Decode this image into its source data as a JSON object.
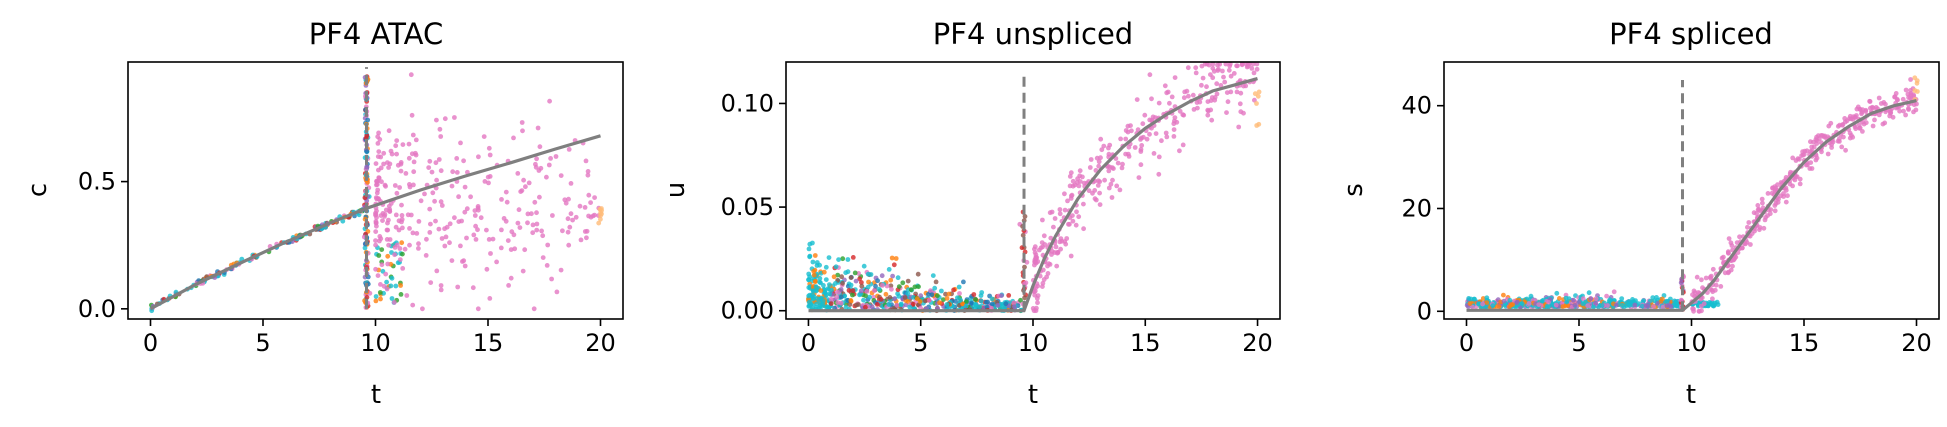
{
  "chart_data": [
    {
      "type": "scatter",
      "title": "PF4 ATAC",
      "xlabel": "t",
      "ylabel": "c",
      "xlim": [
        -1,
        21
      ],
      "ylim": [
        -0.04,
        0.97
      ],
      "xticks": [
        0,
        5,
        10,
        15,
        20
      ],
      "yticks": [
        0.0,
        0.5
      ],
      "ytick_labels": [
        "0.0",
        "0.5"
      ],
      "switch_time": 9.6,
      "vline_range": [
        0.0,
        0.95
      ],
      "fit_curve": [
        [
          0,
          0.0
        ],
        [
          2,
          0.095
        ],
        [
          4,
          0.18
        ],
        [
          6,
          0.262
        ],
        [
          8,
          0.338
        ],
        [
          9.6,
          0.395
        ],
        [
          12,
          0.467
        ],
        [
          14,
          0.522
        ],
        [
          16,
          0.574
        ],
        [
          18,
          0.628
        ],
        [
          20,
          0.68
        ]
      ],
      "grid": false,
      "legend": "none"
    },
    {
      "type": "scatter",
      "title": "PF4 unspliced",
      "xlabel": "t",
      "ylabel": "u",
      "xlim": [
        -1,
        21
      ],
      "ylim": [
        -0.004,
        0.12
      ],
      "xticks": [
        0,
        5,
        10,
        15,
        20
      ],
      "yticks": [
        0.0,
        0.05,
        0.1
      ],
      "ytick_labels": [
        "0.00",
        "0.05",
        "0.10"
      ],
      "switch_time": 9.6,
      "vline_range": [
        0.0,
        0.115
      ],
      "fit_curve": [
        [
          0,
          0.0
        ],
        [
          9.6,
          0.0
        ],
        [
          10.0,
          0.012
        ],
        [
          10.5,
          0.025
        ],
        [
          11,
          0.036
        ],
        [
          12,
          0.054
        ],
        [
          13,
          0.068
        ],
        [
          14,
          0.079
        ],
        [
          15,
          0.088
        ],
        [
          16,
          0.095
        ],
        [
          17,
          0.101
        ],
        [
          18,
          0.106
        ],
        [
          19,
          0.109
        ],
        [
          20,
          0.112
        ]
      ],
      "grid": false,
      "legend": "none"
    },
    {
      "type": "scatter",
      "title": "PF4 spliced",
      "xlabel": "t",
      "ylabel": "s",
      "xlim": [
        -1,
        21
      ],
      "ylim": [
        -1.5,
        48.5
      ],
      "xticks": [
        0,
        5,
        10,
        15,
        20
      ],
      "yticks": [
        0,
        20,
        40
      ],
      "ytick_labels": [
        "0",
        "20",
        "40"
      ],
      "switch_time": 9.6,
      "vline_range": [
        0,
        45
      ],
      "fit_curve": [
        [
          0,
          0.2
        ],
        [
          9.6,
          0.2
        ],
        [
          10.5,
          3.5
        ],
        [
          11,
          6
        ],
        [
          12,
          12
        ],
        [
          13,
          18
        ],
        [
          14,
          24
        ],
        [
          15,
          29
        ],
        [
          16,
          33
        ],
        [
          17,
          36
        ],
        [
          18,
          38.5
        ],
        [
          19,
          40
        ],
        [
          20,
          41
        ]
      ],
      "grid": false,
      "legend": "none"
    }
  ],
  "colors": {
    "fit": "#7f7f7f",
    "vline": "#808080",
    "points": [
      "#e377c2",
      "#17becf",
      "#ff7f0e",
      "#d62728",
      "#1f77b4",
      "#2ca02c",
      "#9467bd",
      "#ffbb78",
      "#8c564b"
    ]
  }
}
